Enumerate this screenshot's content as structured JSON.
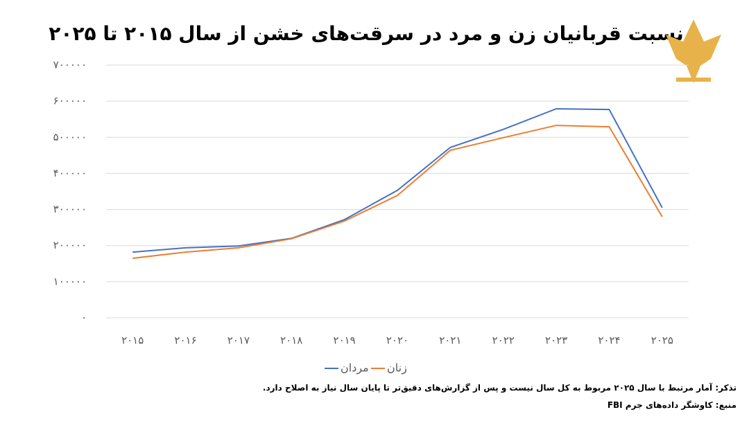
{
  "chart_data": {
    "type": "line",
    "title": "نسبت قربانیان زن و مرد در سرقت‌های خشن از سال ۲۰۱۵ تا ۲۰۲۵",
    "categories": [
      "۲۰۱۵",
      "۲۰۱۶",
      "۲۰۱۷",
      "۲۰۱۸",
      "۲۰۱۹",
      "۲۰۲۰",
      "۲۰۲۱",
      "۲۰۲۲",
      "۲۰۲۳",
      "۲۰۲۴",
      "۲۰۲۵"
    ],
    "series": [
      {
        "name": "مردان",
        "color": "#4472c4",
        "values": [
          182000,
          194000,
          199000,
          220000,
          272000,
          353000,
          472000,
          522000,
          579000,
          577000,
          305000
        ]
      },
      {
        "name": "زنان",
        "color": "#ed7d31",
        "values": [
          165000,
          182000,
          194000,
          219000,
          268000,
          339000,
          464000,
          499000,
          533000,
          529000,
          280000
        ]
      }
    ],
    "ylim": [
      0,
      700000
    ],
    "yticks": [
      {
        "value": 0,
        "label": "۰"
      },
      {
        "value": 100000,
        "label": "۱۰۰۰۰۰"
      },
      {
        "value": 200000,
        "label": "۲۰۰۰۰۰"
      },
      {
        "value": 300000,
        "label": "۳۰۰۰۰۰"
      },
      {
        "value": 400000,
        "label": "۴۰۰۰۰۰"
      },
      {
        "value": 500000,
        "label": "۵۰۰۰۰۰"
      },
      {
        "value": 600000,
        "label": "۶۰۰۰۰۰"
      },
      {
        "value": 700000,
        "label": "۷۰۰۰۰۰"
      }
    ],
    "grid": true,
    "legend": "bottom",
    "notes": [
      "تذکر: آمار مرتبط با سال ۲۰۲۵ مربوط به کل سال نیست و پس از گزارش‌های دقیق‌تر تا پایان سال نیاز به اصلاح دارد.",
      "منبع: کاوشگر داده‌های جرم FBI"
    ]
  }
}
